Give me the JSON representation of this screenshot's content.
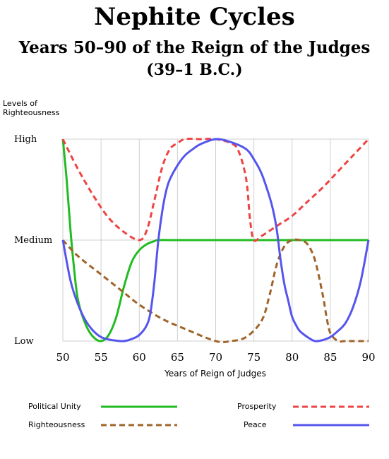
{
  "chart_data": {
    "type": "line",
    "title": "Nephite Cycles",
    "subtitle": "Years 50–90 of the Reign of the Judges",
    "subtitle2": "(39–1 B.C.)",
    "xlabel": "Years of Reign of Judges",
    "ylabel": "Levels of Righteousness",
    "xlim": [
      50,
      90
    ],
    "ylim": [
      0,
      1
    ],
    "xticks": [
      50,
      55,
      60,
      65,
      70,
      75,
      80,
      85,
      90
    ],
    "yticks": [
      {
        "value": 0,
        "label": "Low"
      },
      {
        "value": 0.5,
        "label": "Medium"
      },
      {
        "value": 1,
        "label": "High"
      }
    ],
    "grid": true,
    "legend_position": "bottom",
    "series": [
      {
        "name": "Political Unity",
        "color": "#22bb22",
        "dash": false,
        "x": [
          50,
          50.5,
          51,
          51.5,
          52,
          53,
          54,
          55,
          56,
          57,
          58,
          59,
          60,
          61,
          62,
          62.5,
          65,
          70,
          75,
          80,
          85,
          90
        ],
        "y": [
          1.0,
          0.8,
          0.55,
          0.35,
          0.2,
          0.08,
          0.02,
          0.0,
          0.03,
          0.12,
          0.27,
          0.39,
          0.45,
          0.48,
          0.495,
          0.5,
          0.5,
          0.5,
          0.5,
          0.5,
          0.5,
          0.5
        ]
      },
      {
        "name": "Prosperity",
        "color": "#ee4444",
        "dash": true,
        "x": [
          50,
          52,
          54,
          56,
          58,
          60,
          61,
          62,
          63,
          64,
          65,
          66,
          68,
          70,
          72,
          73,
          74,
          74.5,
          75,
          76,
          78,
          80,
          82,
          84,
          86,
          88,
          90
        ],
        "y": [
          1.0,
          0.85,
          0.72,
          0.61,
          0.54,
          0.5,
          0.55,
          0.7,
          0.86,
          0.95,
          0.98,
          1.0,
          1.0,
          1.0,
          0.98,
          0.94,
          0.8,
          0.6,
          0.5,
          0.52,
          0.57,
          0.62,
          0.69,
          0.76,
          0.84,
          0.92,
          1.0
        ]
      },
      {
        "name": "Righteousness",
        "color": "#a0642a",
        "dash": true,
        "x": [
          50,
          52,
          55,
          58,
          60,
          63,
          66,
          70,
          72,
          74,
          76,
          77,
          78,
          79,
          80,
          81,
          82,
          83,
          84,
          84.5,
          85,
          86,
          87,
          90
        ],
        "y": [
          0.5,
          0.42,
          0.33,
          0.24,
          0.18,
          0.11,
          0.06,
          0.0,
          0.0,
          0.02,
          0.1,
          0.22,
          0.38,
          0.47,
          0.5,
          0.5,
          0.48,
          0.4,
          0.23,
          0.12,
          0.04,
          0.0,
          0.0,
          0.0
        ]
      },
      {
        "name": "Peace",
        "color": "#5555ee",
        "dash": false,
        "x": [
          50,
          51,
          52,
          53,
          54,
          55,
          56,
          57,
          58,
          59,
          60,
          61,
          61.5,
          62,
          62.5,
          63,
          63.5,
          64,
          65,
          66,
          67,
          68,
          70,
          72,
          74,
          75,
          76,
          77,
          77.5,
          78,
          78.5,
          79,
          79.5,
          80,
          80.5,
          81,
          82,
          83,
          84,
          85,
          86,
          87,
          88,
          89,
          90
        ],
        "y": [
          0.5,
          0.3,
          0.18,
          0.1,
          0.05,
          0.02,
          0.008,
          0.002,
          0.0,
          0.01,
          0.03,
          0.08,
          0.15,
          0.3,
          0.5,
          0.64,
          0.74,
          0.8,
          0.87,
          0.92,
          0.95,
          0.975,
          1.0,
          0.985,
          0.95,
          0.9,
          0.83,
          0.72,
          0.65,
          0.55,
          0.4,
          0.28,
          0.2,
          0.12,
          0.08,
          0.05,
          0.02,
          0.0,
          0.005,
          0.02,
          0.05,
          0.09,
          0.17,
          0.3,
          0.5
        ]
      }
    ]
  }
}
